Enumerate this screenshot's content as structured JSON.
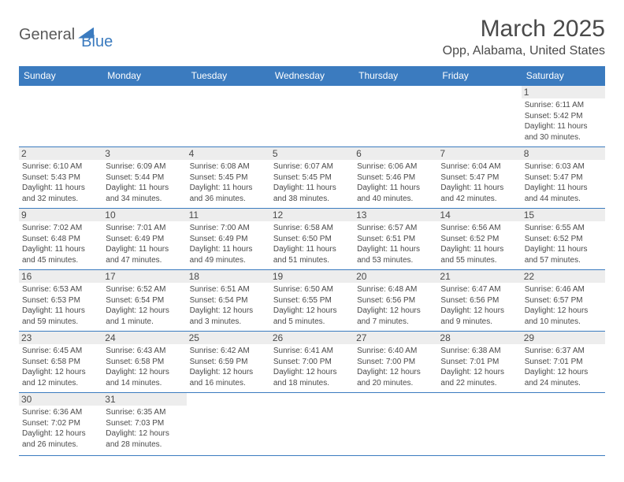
{
  "logo": {
    "part1": "General",
    "part2": "Blue"
  },
  "title": "March 2025",
  "location": "Opp, Alabama, United States",
  "headers": [
    "Sunday",
    "Monday",
    "Tuesday",
    "Wednesday",
    "Thursday",
    "Friday",
    "Saturday"
  ],
  "colors": {
    "header_bg": "#3b7bbf",
    "header_fg": "#ffffff",
    "daynum_bg": "#ededed",
    "text": "#4a4a4a",
    "border": "#3b7bbf",
    "background": "#ffffff"
  },
  "fonts": {
    "title_size": 30,
    "location_size": 16,
    "header_size": 12,
    "daynum_size": 12,
    "body_size": 10
  },
  "weeks": [
    [
      {
        "n": "",
        "sr": "",
        "ss": "",
        "dl": ""
      },
      {
        "n": "",
        "sr": "",
        "ss": "",
        "dl": ""
      },
      {
        "n": "",
        "sr": "",
        "ss": "",
        "dl": ""
      },
      {
        "n": "",
        "sr": "",
        "ss": "",
        "dl": ""
      },
      {
        "n": "",
        "sr": "",
        "ss": "",
        "dl": ""
      },
      {
        "n": "",
        "sr": "",
        "ss": "",
        "dl": ""
      },
      {
        "n": "1",
        "sr": "Sunrise: 6:11 AM",
        "ss": "Sunset: 5:42 PM",
        "dl": "Daylight: 11 hours and 30 minutes."
      }
    ],
    [
      {
        "n": "2",
        "sr": "Sunrise: 6:10 AM",
        "ss": "Sunset: 5:43 PM",
        "dl": "Daylight: 11 hours and 32 minutes."
      },
      {
        "n": "3",
        "sr": "Sunrise: 6:09 AM",
        "ss": "Sunset: 5:44 PM",
        "dl": "Daylight: 11 hours and 34 minutes."
      },
      {
        "n": "4",
        "sr": "Sunrise: 6:08 AM",
        "ss": "Sunset: 5:45 PM",
        "dl": "Daylight: 11 hours and 36 minutes."
      },
      {
        "n": "5",
        "sr": "Sunrise: 6:07 AM",
        "ss": "Sunset: 5:45 PM",
        "dl": "Daylight: 11 hours and 38 minutes."
      },
      {
        "n": "6",
        "sr": "Sunrise: 6:06 AM",
        "ss": "Sunset: 5:46 PM",
        "dl": "Daylight: 11 hours and 40 minutes."
      },
      {
        "n": "7",
        "sr": "Sunrise: 6:04 AM",
        "ss": "Sunset: 5:47 PM",
        "dl": "Daylight: 11 hours and 42 minutes."
      },
      {
        "n": "8",
        "sr": "Sunrise: 6:03 AM",
        "ss": "Sunset: 5:47 PM",
        "dl": "Daylight: 11 hours and 44 minutes."
      }
    ],
    [
      {
        "n": "9",
        "sr": "Sunrise: 7:02 AM",
        "ss": "Sunset: 6:48 PM",
        "dl": "Daylight: 11 hours and 45 minutes."
      },
      {
        "n": "10",
        "sr": "Sunrise: 7:01 AM",
        "ss": "Sunset: 6:49 PM",
        "dl": "Daylight: 11 hours and 47 minutes."
      },
      {
        "n": "11",
        "sr": "Sunrise: 7:00 AM",
        "ss": "Sunset: 6:49 PM",
        "dl": "Daylight: 11 hours and 49 minutes."
      },
      {
        "n": "12",
        "sr": "Sunrise: 6:58 AM",
        "ss": "Sunset: 6:50 PM",
        "dl": "Daylight: 11 hours and 51 minutes."
      },
      {
        "n": "13",
        "sr": "Sunrise: 6:57 AM",
        "ss": "Sunset: 6:51 PM",
        "dl": "Daylight: 11 hours and 53 minutes."
      },
      {
        "n": "14",
        "sr": "Sunrise: 6:56 AM",
        "ss": "Sunset: 6:52 PM",
        "dl": "Daylight: 11 hours and 55 minutes."
      },
      {
        "n": "15",
        "sr": "Sunrise: 6:55 AM",
        "ss": "Sunset: 6:52 PM",
        "dl": "Daylight: 11 hours and 57 minutes."
      }
    ],
    [
      {
        "n": "16",
        "sr": "Sunrise: 6:53 AM",
        "ss": "Sunset: 6:53 PM",
        "dl": "Daylight: 11 hours and 59 minutes."
      },
      {
        "n": "17",
        "sr": "Sunrise: 6:52 AM",
        "ss": "Sunset: 6:54 PM",
        "dl": "Daylight: 12 hours and 1 minute."
      },
      {
        "n": "18",
        "sr": "Sunrise: 6:51 AM",
        "ss": "Sunset: 6:54 PM",
        "dl": "Daylight: 12 hours and 3 minutes."
      },
      {
        "n": "19",
        "sr": "Sunrise: 6:50 AM",
        "ss": "Sunset: 6:55 PM",
        "dl": "Daylight: 12 hours and 5 minutes."
      },
      {
        "n": "20",
        "sr": "Sunrise: 6:48 AM",
        "ss": "Sunset: 6:56 PM",
        "dl": "Daylight: 12 hours and 7 minutes."
      },
      {
        "n": "21",
        "sr": "Sunrise: 6:47 AM",
        "ss": "Sunset: 6:56 PM",
        "dl": "Daylight: 12 hours and 9 minutes."
      },
      {
        "n": "22",
        "sr": "Sunrise: 6:46 AM",
        "ss": "Sunset: 6:57 PM",
        "dl": "Daylight: 12 hours and 10 minutes."
      }
    ],
    [
      {
        "n": "23",
        "sr": "Sunrise: 6:45 AM",
        "ss": "Sunset: 6:58 PM",
        "dl": "Daylight: 12 hours and 12 minutes."
      },
      {
        "n": "24",
        "sr": "Sunrise: 6:43 AM",
        "ss": "Sunset: 6:58 PM",
        "dl": "Daylight: 12 hours and 14 minutes."
      },
      {
        "n": "25",
        "sr": "Sunrise: 6:42 AM",
        "ss": "Sunset: 6:59 PM",
        "dl": "Daylight: 12 hours and 16 minutes."
      },
      {
        "n": "26",
        "sr": "Sunrise: 6:41 AM",
        "ss": "Sunset: 7:00 PM",
        "dl": "Daylight: 12 hours and 18 minutes."
      },
      {
        "n": "27",
        "sr": "Sunrise: 6:40 AM",
        "ss": "Sunset: 7:00 PM",
        "dl": "Daylight: 12 hours and 20 minutes."
      },
      {
        "n": "28",
        "sr": "Sunrise: 6:38 AM",
        "ss": "Sunset: 7:01 PM",
        "dl": "Daylight: 12 hours and 22 minutes."
      },
      {
        "n": "29",
        "sr": "Sunrise: 6:37 AM",
        "ss": "Sunset: 7:01 PM",
        "dl": "Daylight: 12 hours and 24 minutes."
      }
    ],
    [
      {
        "n": "30",
        "sr": "Sunrise: 6:36 AM",
        "ss": "Sunset: 7:02 PM",
        "dl": "Daylight: 12 hours and 26 minutes."
      },
      {
        "n": "31",
        "sr": "Sunrise: 6:35 AM",
        "ss": "Sunset: 7:03 PM",
        "dl": "Daylight: 12 hours and 28 minutes."
      },
      {
        "n": "",
        "sr": "",
        "ss": "",
        "dl": ""
      },
      {
        "n": "",
        "sr": "",
        "ss": "",
        "dl": ""
      },
      {
        "n": "",
        "sr": "",
        "ss": "",
        "dl": ""
      },
      {
        "n": "",
        "sr": "",
        "ss": "",
        "dl": ""
      },
      {
        "n": "",
        "sr": "",
        "ss": "",
        "dl": ""
      }
    ]
  ]
}
